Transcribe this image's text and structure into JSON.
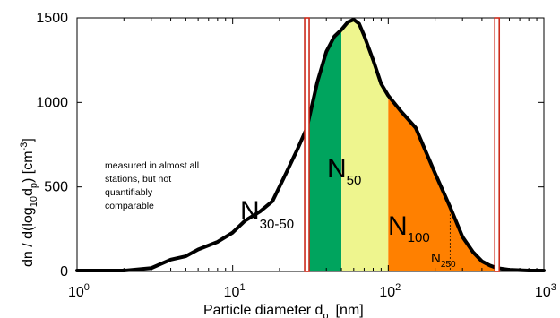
{
  "chart_data": {
    "type": "area",
    "xscale": "log",
    "xlim": [
      1,
      1000
    ],
    "ylim": [
      0,
      1500
    ],
    "x_ticks": [
      {
        "value": 1,
        "base": "10",
        "exp": "0"
      },
      {
        "value": 10,
        "base": "10",
        "exp": "1"
      },
      {
        "value": 100,
        "base": "10",
        "exp": "2"
      },
      {
        "value": 1000,
        "base": "10",
        "exp": "3"
      }
    ],
    "y_ticks": [
      "0",
      "500",
      "1000",
      "1500"
    ],
    "xlabel": {
      "main": "Particle diameter d",
      "sub": "p",
      "unit": "[nm]"
    },
    "ylabel": {
      "pre": "dn  / d(log",
      "sub1": "10",
      "mid": "d",
      "sub2": "p",
      "post": ")  [cm",
      "sup": "-3",
      "end": "]"
    },
    "series": [
      {
        "x": [
          1,
          1.5,
          2,
          3,
          4,
          5,
          6,
          8,
          10,
          12,
          15,
          18,
          22,
          26,
          30,
          35,
          40,
          45,
          50,
          55,
          60,
          65,
          70,
          80,
          90,
          100,
          120,
          150,
          200,
          250,
          300,
          350,
          400,
          450,
          500,
          600,
          800,
          1000
        ],
        "y": [
          5,
          5,
          5,
          20,
          70,
          90,
          130,
          175,
          230,
          300,
          355,
          415,
          580,
          720,
          850,
          1120,
          1300,
          1390,
          1430,
          1475,
          1490,
          1465,
          1395,
          1250,
          1110,
          1040,
          950,
          850,
          580,
          380,
          205,
          115,
          60,
          35,
          20,
          10,
          5,
          5
        ]
      }
    ],
    "bounds": {
      "lower": 30,
      "upper": 500
    },
    "regions": [
      {
        "from": 30,
        "to": 50,
        "color": "#00a45e",
        "label": "N",
        "sub": "30-50"
      },
      {
        "from": 50,
        "to": 100,
        "color": "#eef58e",
        "label": "N",
        "sub": "50"
      },
      {
        "from": 100,
        "to": 500,
        "color": "#ff8000",
        "label": "N",
        "sub": "100"
      }
    ],
    "n250": {
      "x": 250,
      "label": "N",
      "sub": "250"
    },
    "annotation": [
      "measured in almost all",
      "stations, but not",
      "quantifiably",
      "comparable"
    ],
    "colors": {
      "curve": "#000000",
      "bounds": "#cc2a1a"
    }
  }
}
